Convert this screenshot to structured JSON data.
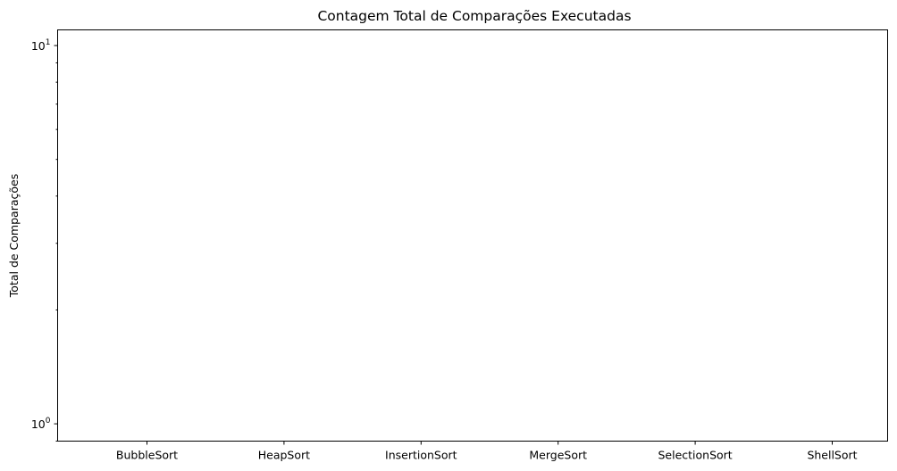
{
  "chart_data": {
    "type": "bar",
    "title": "Contagem Total de Comparações Executadas",
    "xlabel": "",
    "ylabel": "Total de Comparações",
    "y_scale": "log",
    "ylim": [
      0.9,
      11
    ],
    "y_ticks": [
      {
        "value": 1,
        "base": "10",
        "exponent": "0"
      },
      {
        "value": 10,
        "base": "10",
        "exponent": "1"
      }
    ],
    "categories": [
      "BubbleSort",
      "HeapSort",
      "InsertionSort",
      "MergeSort",
      "SelectionSort",
      "ShellSort"
    ],
    "values": [
      0,
      0,
      0,
      0,
      0,
      0
    ],
    "grid": false,
    "legend": "none"
  }
}
